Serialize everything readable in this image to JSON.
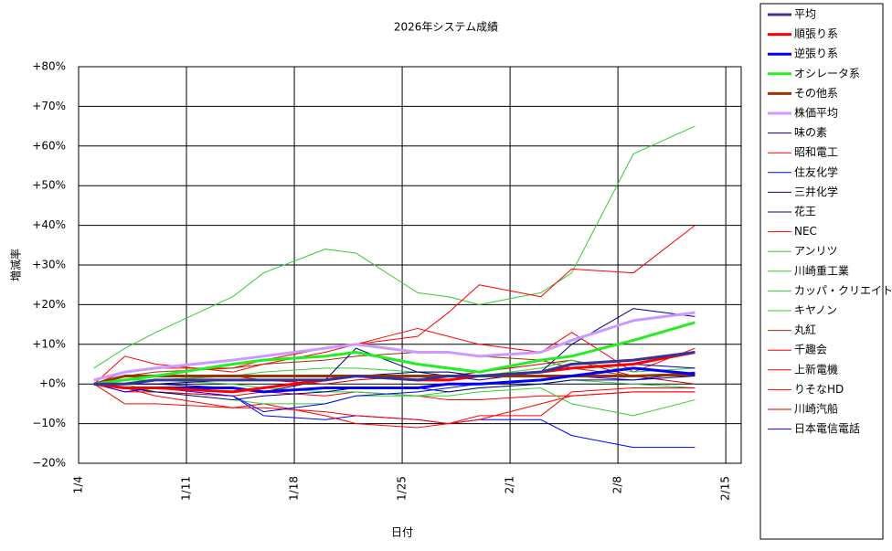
{
  "chart_data": {
    "type": "line",
    "title": "2026年システム成績",
    "x_label": "日付",
    "y_label": "増減率",
    "x": [
      "1/5",
      "1/7",
      "1/9",
      "1/14",
      "1/16",
      "1/20",
      "1/22",
      "1/26",
      "1/28",
      "1/30",
      "2/3",
      "2/5",
      "2/9",
      "2/13"
    ],
    "xlim": [
      "1/4",
      "2/16"
    ],
    "xticks": [
      "1/4",
      "1/11",
      "1/18",
      "1/25",
      "2/1",
      "2/8",
      "2/15"
    ],
    "ylim": [
      -20,
      80
    ],
    "yticks": [
      {
        "value": -20,
        "label": "−20%"
      },
      {
        "value": -10,
        "label": "−10%"
      },
      {
        "value": 0,
        "label": "+0%"
      },
      {
        "value": 10,
        "label": "+10%"
      },
      {
        "value": 20,
        "label": "+20%"
      },
      {
        "value": 30,
        "label": "+30%"
      },
      {
        "value": 40,
        "label": "+40%"
      },
      {
        "value": 50,
        "label": "+50%"
      },
      {
        "value": 60,
        "label": "+60%"
      },
      {
        "value": 70,
        "label": "+70%"
      },
      {
        "value": 80,
        "label": "+80%"
      }
    ],
    "grid": true,
    "legend": "right",
    "series": [
      {
        "name": "平均",
        "color": "#333399",
        "width": 3,
        "values": [
          0,
          0,
          1,
          1,
          1,
          1,
          2,
          1,
          2,
          2,
          3,
          5,
          6,
          8
        ]
      },
      {
        "name": "順張り系",
        "color": "#ff0000",
        "width": 3,
        "values": [
          0,
          -1,
          -1,
          -2,
          -1,
          1,
          2,
          1,
          1,
          2,
          3,
          4,
          5,
          8
        ]
      },
      {
        "name": "逆張り系",
        "color": "#0000ff",
        "width": 3,
        "values": [
          0,
          -1,
          -1,
          -1,
          -2,
          -1,
          -1,
          -1,
          0,
          0,
          1,
          2,
          4,
          2.5
        ]
      },
      {
        "name": "オシレータ系",
        "color": "#22ee22",
        "width": 3,
        "values": [
          0,
          1,
          2,
          5,
          6,
          7,
          8,
          5,
          4,
          3,
          6,
          7,
          11,
          15.5
        ]
      },
      {
        "name": "その他系",
        "color": "#993300",
        "width": 3,
        "values": [
          0,
          2,
          2,
          2,
          2,
          2,
          2,
          2,
          2,
          2,
          2,
          2,
          2,
          2.5
        ]
      },
      {
        "name": "株価平均",
        "color": "#cc99ff",
        "width": 3,
        "values": [
          1,
          3,
          4,
          6,
          7,
          9,
          10,
          8,
          8,
          7,
          8,
          11,
          16,
          18
        ]
      },
      {
        "name": "味の素",
        "color": "#000080",
        "width": 1,
        "values": [
          0,
          0,
          0,
          1,
          1,
          1,
          2,
          3,
          3,
          2,
          3,
          4,
          5,
          4
        ]
      },
      {
        "name": "昭和電工",
        "color": "#ff0000",
        "width": 1,
        "values": [
          0,
          7,
          5,
          3,
          5,
          8,
          10,
          12,
          18,
          25,
          22,
          29,
          28,
          40
        ]
      },
      {
        "name": "住友化学",
        "color": "#0000ff",
        "width": 1,
        "values": [
          0,
          -2,
          -1,
          -3,
          -7,
          -5,
          -3,
          -2,
          -1,
          0,
          1,
          2,
          1,
          3
        ]
      },
      {
        "name": "三井化学",
        "color": "#000080",
        "width": 1,
        "values": [
          0,
          0,
          0,
          -1,
          -2,
          1,
          9,
          3,
          2,
          1,
          3,
          10,
          19,
          17
        ]
      },
      {
        "name": "花王",
        "color": "#000080",
        "width": 1,
        "values": [
          0,
          -1,
          -2,
          -4,
          -3,
          -2,
          -1,
          -1,
          -2,
          -1,
          0,
          1,
          1,
          2
        ]
      },
      {
        "name": "NEC",
        "color": "#ff0000",
        "width": 1,
        "values": [
          0,
          -5,
          -5,
          -6,
          -6,
          -7,
          -8,
          -9,
          -10,
          -8,
          -8,
          -2,
          -1,
          -1
        ]
      },
      {
        "name": "アンリツ",
        "color": "#33cc33",
        "width": 1,
        "values": [
          4,
          9,
          13,
          22,
          28,
          34,
          33,
          23,
          22,
          20,
          23,
          28,
          58,
          65
        ]
      },
      {
        "name": "川崎重工業",
        "color": "#33cc33",
        "width": 1,
        "values": [
          0,
          0,
          -2,
          -4,
          -5,
          -5,
          -3,
          -3,
          -3,
          -2,
          -1,
          -5,
          -8,
          -4
        ]
      },
      {
        "name": "カッパ・クリエイト",
        "color": "#33cc33",
        "width": 1,
        "values": [
          0,
          1,
          1,
          2,
          3,
          4,
          4,
          3,
          3,
          2,
          4,
          6,
          3,
          4
        ]
      },
      {
        "name": "キヤノン",
        "color": "#33cc33",
        "width": 1,
        "values": [
          0,
          1,
          1,
          0,
          -1,
          -2,
          -2,
          -3,
          -2,
          -1,
          0,
          1,
          0,
          -1
        ]
      },
      {
        "name": "丸紅",
        "color": "#993300",
        "width": 1,
        "values": [
          0,
          2,
          3,
          4,
          5,
          6,
          7,
          8,
          8,
          7,
          6,
          4,
          2,
          2
        ]
      },
      {
        "name": "千趣会",
        "color": "#ff0000",
        "width": 1,
        "values": [
          0,
          -1,
          -3,
          -6,
          -5,
          -8,
          -10,
          -11,
          -10,
          -9,
          -5,
          -3,
          -2,
          -2
        ]
      },
      {
        "name": "上新電機",
        "color": "#ff0000",
        "width": 1,
        "values": [
          0,
          3,
          4,
          4,
          6,
          9,
          10,
          14,
          12,
          10,
          8,
          13,
          3,
          9
        ]
      },
      {
        "name": "りそなHD",
        "color": "#ff0000",
        "width": 1,
        "values": [
          0,
          -2,
          -2,
          -3,
          -2,
          -3,
          -2,
          -3,
          -4,
          -4,
          -3,
          -3,
          -2,
          -2
        ]
      },
      {
        "name": "川崎汽船",
        "color": "#cc0000",
        "width": 1,
        "values": [
          0,
          0,
          1,
          2,
          1,
          0,
          1,
          2,
          2,
          3,
          5,
          6,
          2,
          0
        ]
      },
      {
        "name": "日本電信電話",
        "color": "#0000ff",
        "width": 1,
        "values": [
          0,
          -1,
          -2,
          -3,
          -8,
          -9,
          -8,
          -9,
          -10,
          -9,
          -9,
          -13,
          -16,
          -16
        ]
      }
    ]
  }
}
